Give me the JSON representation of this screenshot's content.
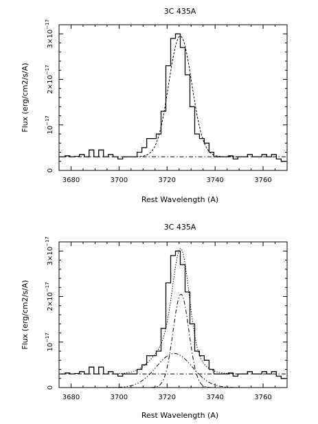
{
  "chart_data": [
    {
      "type": "line",
      "title": "3C 435A",
      "xlabel": "Rest Wavelength (A)",
      "ylabel": "Flux (erg/cm2/s/A)",
      "xlim": [
        3675,
        3770
      ],
      "ylim": [
        0,
        3.2
      ],
      "x_ticks": [
        3680,
        3700,
        3720,
        3740,
        3760
      ],
      "y_ticks": [
        {
          "value": 0,
          "label": "0",
          "exp": ""
        },
        {
          "value": 1,
          "label": "10",
          "exp": "−17"
        },
        {
          "value": 2,
          "label": "2×10",
          "exp": "−17"
        },
        {
          "value": 3,
          "label": "3×10",
          "exp": "−17"
        }
      ],
      "y_unit": "1e-17 erg/cm2/s/A",
      "grid": false,
      "series": [
        {
          "kind": "observed histogram",
          "style": "steps, solid",
          "x": [
            3676.5,
            3678.5,
            3680.5,
            3682.5,
            3684.5,
            3686.5,
            3688.5,
            3690.5,
            3692.5,
            3694.5,
            3696.5,
            3698.5,
            3700.5,
            3702.5,
            3704.5,
            3706.5,
            3708.5,
            3710.5,
            3712.5,
            3714.5,
            3716.5,
            3718.5,
            3720.5,
            3722.5,
            3724.5,
            3726.5,
            3728.5,
            3730.5,
            3732.5,
            3734.5,
            3736.5,
            3738.5,
            3740.5,
            3742.5,
            3744.5,
            3746.5,
            3748.5,
            3750.5,
            3752.5,
            3754.5,
            3756.5,
            3758.5,
            3760.5,
            3762.5,
            3764.5,
            3766.5,
            3768.5
          ],
          "y": [
            0.3,
            0.32,
            0.3,
            0.31,
            0.35,
            0.3,
            0.45,
            0.3,
            0.45,
            0.3,
            0.35,
            0.3,
            0.25,
            0.3,
            0.3,
            0.3,
            0.4,
            0.5,
            0.7,
            0.7,
            0.8,
            1.3,
            2.3,
            2.9,
            3.0,
            2.7,
            2.1,
            1.4,
            0.8,
            0.7,
            0.6,
            0.4,
            0.3,
            0.3,
            0.3,
            0.32,
            0.25,
            0.3,
            0.3,
            0.35,
            0.3,
            0.3,
            0.35,
            0.3,
            0.35,
            0.25,
            0.2
          ]
        },
        {
          "kind": "continuum",
          "style": "dash-dot",
          "x": [
            3675,
            3770
          ],
          "y": [
            0.3,
            0.3
          ]
        },
        {
          "kind": "single gaussian fit",
          "style": "dashed",
          "center": 3725.5,
          "sigma": 4.8,
          "peak": 2.65,
          "baseline": 0.3
        }
      ]
    },
    {
      "type": "line",
      "title": "3C 435A",
      "xlabel": "Rest Wavelength (A)",
      "ylabel": "Flux (erg/cm2/s/A)",
      "xlim": [
        3675,
        3770
      ],
      "ylim": [
        0,
        3.2
      ],
      "x_ticks": [
        3680,
        3700,
        3720,
        3740,
        3760
      ],
      "y_ticks": [
        {
          "value": 0,
          "label": "0",
          "exp": ""
        },
        {
          "value": 1,
          "label": "10",
          "exp": "−17"
        },
        {
          "value": 2,
          "label": "2×10",
          "exp": "−17"
        },
        {
          "value": 3,
          "label": "3×10",
          "exp": "−17"
        }
      ],
      "y_unit": "1e-17 erg/cm2/s/A",
      "grid": false,
      "series": [
        {
          "kind": "observed histogram",
          "style": "steps, solid",
          "x": [
            3676.5,
            3678.5,
            3680.5,
            3682.5,
            3684.5,
            3686.5,
            3688.5,
            3690.5,
            3692.5,
            3694.5,
            3696.5,
            3698.5,
            3700.5,
            3702.5,
            3704.5,
            3706.5,
            3708.5,
            3710.5,
            3712.5,
            3714.5,
            3716.5,
            3718.5,
            3720.5,
            3722.5,
            3724.5,
            3726.5,
            3728.5,
            3730.5,
            3732.5,
            3734.5,
            3736.5,
            3738.5,
            3740.5,
            3742.5,
            3744.5,
            3746.5,
            3748.5,
            3750.5,
            3752.5,
            3754.5,
            3756.5,
            3758.5,
            3760.5,
            3762.5,
            3764.5,
            3766.5,
            3768.5
          ],
          "y": [
            0.3,
            0.32,
            0.3,
            0.31,
            0.35,
            0.3,
            0.45,
            0.3,
            0.45,
            0.3,
            0.35,
            0.3,
            0.25,
            0.3,
            0.3,
            0.3,
            0.4,
            0.5,
            0.7,
            0.7,
            0.8,
            1.3,
            2.3,
            2.9,
            3.0,
            2.7,
            2.1,
            1.4,
            0.8,
            0.7,
            0.6,
            0.4,
            0.3,
            0.3,
            0.3,
            0.32,
            0.25,
            0.3,
            0.3,
            0.35,
            0.3,
            0.3,
            0.35,
            0.3,
            0.35,
            0.25,
            0.2
          ]
        },
        {
          "kind": "continuum",
          "style": "dash-dot",
          "x": [
            3675,
            3770
          ],
          "y": [
            0.3,
            0.3
          ]
        },
        {
          "kind": "narrow gaussian component",
          "style": "dash-dot",
          "center": 3725.8,
          "sigma": 3.3,
          "peak": 2.05,
          "baseline": 0.0
        },
        {
          "kind": "broad gaussian component",
          "style": "dash-dot-dot",
          "center": 3723.0,
          "sigma": 7.5,
          "peak": 0.75,
          "baseline": 0.0
        },
        {
          "kind": "total fit",
          "style": "dotted",
          "sum_of": [
            2,
            3
          ],
          "baseline": 0.3
        }
      ]
    }
  ]
}
